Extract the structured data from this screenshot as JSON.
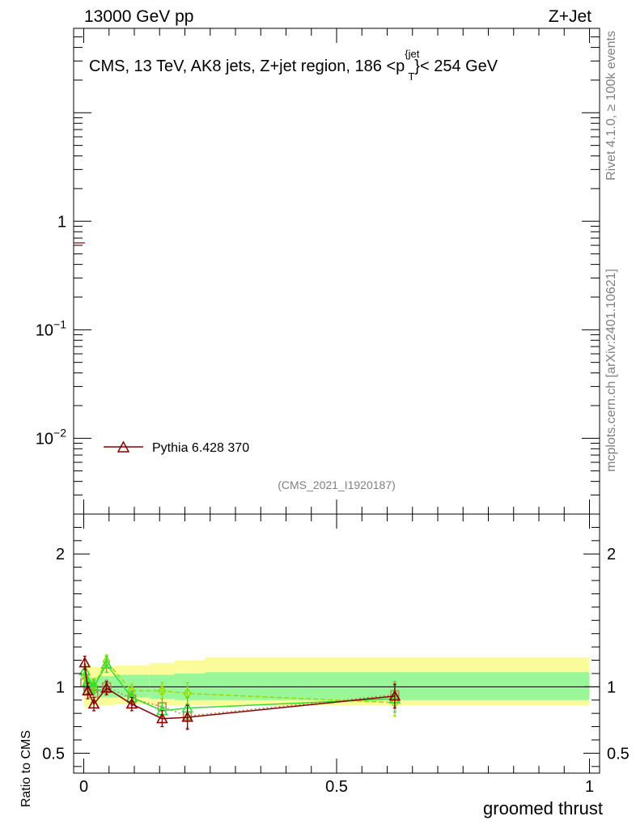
{
  "header": {
    "left": "13000 GeV pp",
    "right": "Z+Jet"
  },
  "side_labels": {
    "rivet": "Rivet 4.1.0, ≥ 100k events",
    "mcplots": "mcplots.cern.ch [arXiv:2401.10621]"
  },
  "colors": {
    "pythia": "#8b0000",
    "green_mc": "#33dd33",
    "lime_mc": "#99dd00",
    "olive_mc": "#b09050",
    "band_inner": "#99f799",
    "band_outer": "#fbfb99"
  },
  "chart_data": [
    {
      "type": "line",
      "panel": "main",
      "title_main": "CMS, 13 TeV, AK8 jets, Z+jet region, 186 <p",
      "title_sup": "{jet",
      "title_sub": "T",
      "title_tail": "}< 254 GeV",
      "y_scale": "log",
      "ylim": [
        0.002,
        60
      ],
      "y_ticks": [
        {
          "value": 1,
          "label": "1",
          "exp": ""
        },
        {
          "value": 0.1,
          "label": "10",
          "exp": "−1"
        },
        {
          "value": 0.01,
          "label": "10",
          "exp": "−2"
        }
      ],
      "legend": [
        {
          "name": "Pythia 6.428 370",
          "marker": "triangle",
          "color": "#8b0000"
        }
      ],
      "watermark": "(CMS_2021_I1920187)"
    },
    {
      "type": "line",
      "panel": "ratio",
      "ylabel": "Ratio to CMS",
      "xlabel": "groomed thrust",
      "xlim": [
        -0.02,
        1.02
      ],
      "ylim": [
        0.35,
        2.3
      ],
      "x_ticks": [
        {
          "value": 0,
          "label": "0"
        },
        {
          "value": 0.5,
          "label": "0.5"
        },
        {
          "value": 1,
          "label": "1"
        }
      ],
      "y_ticks": [
        {
          "value": 2,
          "label": "2"
        },
        {
          "value": 1,
          "label": "1"
        },
        {
          "value": 0.5,
          "label": "0.5"
        }
      ],
      "bins": [
        0,
        0.01,
        0.03,
        0.06,
        0.13,
        0.18,
        0.24,
        1.0
      ],
      "band_inner": [
        [
          0.93,
          1.07
        ],
        [
          0.93,
          1.07
        ],
        [
          0.92,
          1.08
        ],
        [
          0.92,
          1.09
        ],
        [
          0.91,
          1.09
        ],
        [
          0.9,
          1.1
        ],
        [
          0.9,
          1.11
        ]
      ],
      "band_outer": [
        [
          0.85,
          1.16
        ],
        [
          0.86,
          1.15
        ],
        [
          0.86,
          1.15
        ],
        [
          0.87,
          1.16
        ],
        [
          0.86,
          1.18
        ],
        [
          0.86,
          1.2
        ],
        [
          0.86,
          1.22
        ]
      ],
      "series": [
        {
          "name": "Pythia 6.428 370",
          "color": "#8b0000",
          "marker": "triangle",
          "dash": "",
          "x": [
            0.002,
            0.008,
            0.02,
            0.045,
            0.095,
            0.155,
            0.205,
            0.615
          ],
          "y": [
            1.18,
            0.97,
            0.87,
            0.99,
            0.87,
            0.76,
            0.77,
            0.93
          ],
          "err": [
            0.05,
            0.06,
            0.05,
            0.05,
            0.05,
            0.06,
            0.09,
            0.09
          ]
        },
        {
          "name": "",
          "color": "#33dd33",
          "marker": "triangle",
          "dash": "",
          "x": [
            0.002,
            0.008,
            0.02,
            0.045,
            0.095,
            0.155,
            0.205,
            0.615
          ],
          "y": [
            1.12,
            1.04,
            1.0,
            1.17,
            0.92,
            0.82,
            0.84,
            0.91
          ],
          "err": [
            0.05,
            0.05,
            0.05,
            0.06,
            0.05,
            0.06,
            0.08,
            0.1
          ]
        },
        {
          "name": "",
          "color": "#99dd00",
          "marker": "diamond",
          "dash": "6,3",
          "x": [
            0.002,
            0.008,
            0.02,
            0.045,
            0.095,
            0.155,
            0.205,
            0.615
          ],
          "y": [
            1.08,
            1.02,
            1.01,
            1.19,
            0.97,
            0.97,
            0.95,
            0.88
          ],
          "err": [
            0.05,
            0.05,
            0.05,
            0.05,
            0.05,
            0.06,
            0.08,
            0.1
          ]
        },
        {
          "name": "",
          "color": "#b09050",
          "marker": "square",
          "dash": "2,3",
          "x": [
            0.002,
            0.008,
            0.02,
            0.045,
            0.095,
            0.155,
            0.205,
            0.615
          ],
          "y": [
            1.03,
            1.0,
            0.95,
            1.0,
            0.91,
            0.85,
            0.78,
            0.94
          ],
          "err": [
            0.05,
            0.05,
            0.05,
            0.05,
            0.05,
            0.06,
            0.09,
            0.1
          ]
        }
      ]
    }
  ]
}
